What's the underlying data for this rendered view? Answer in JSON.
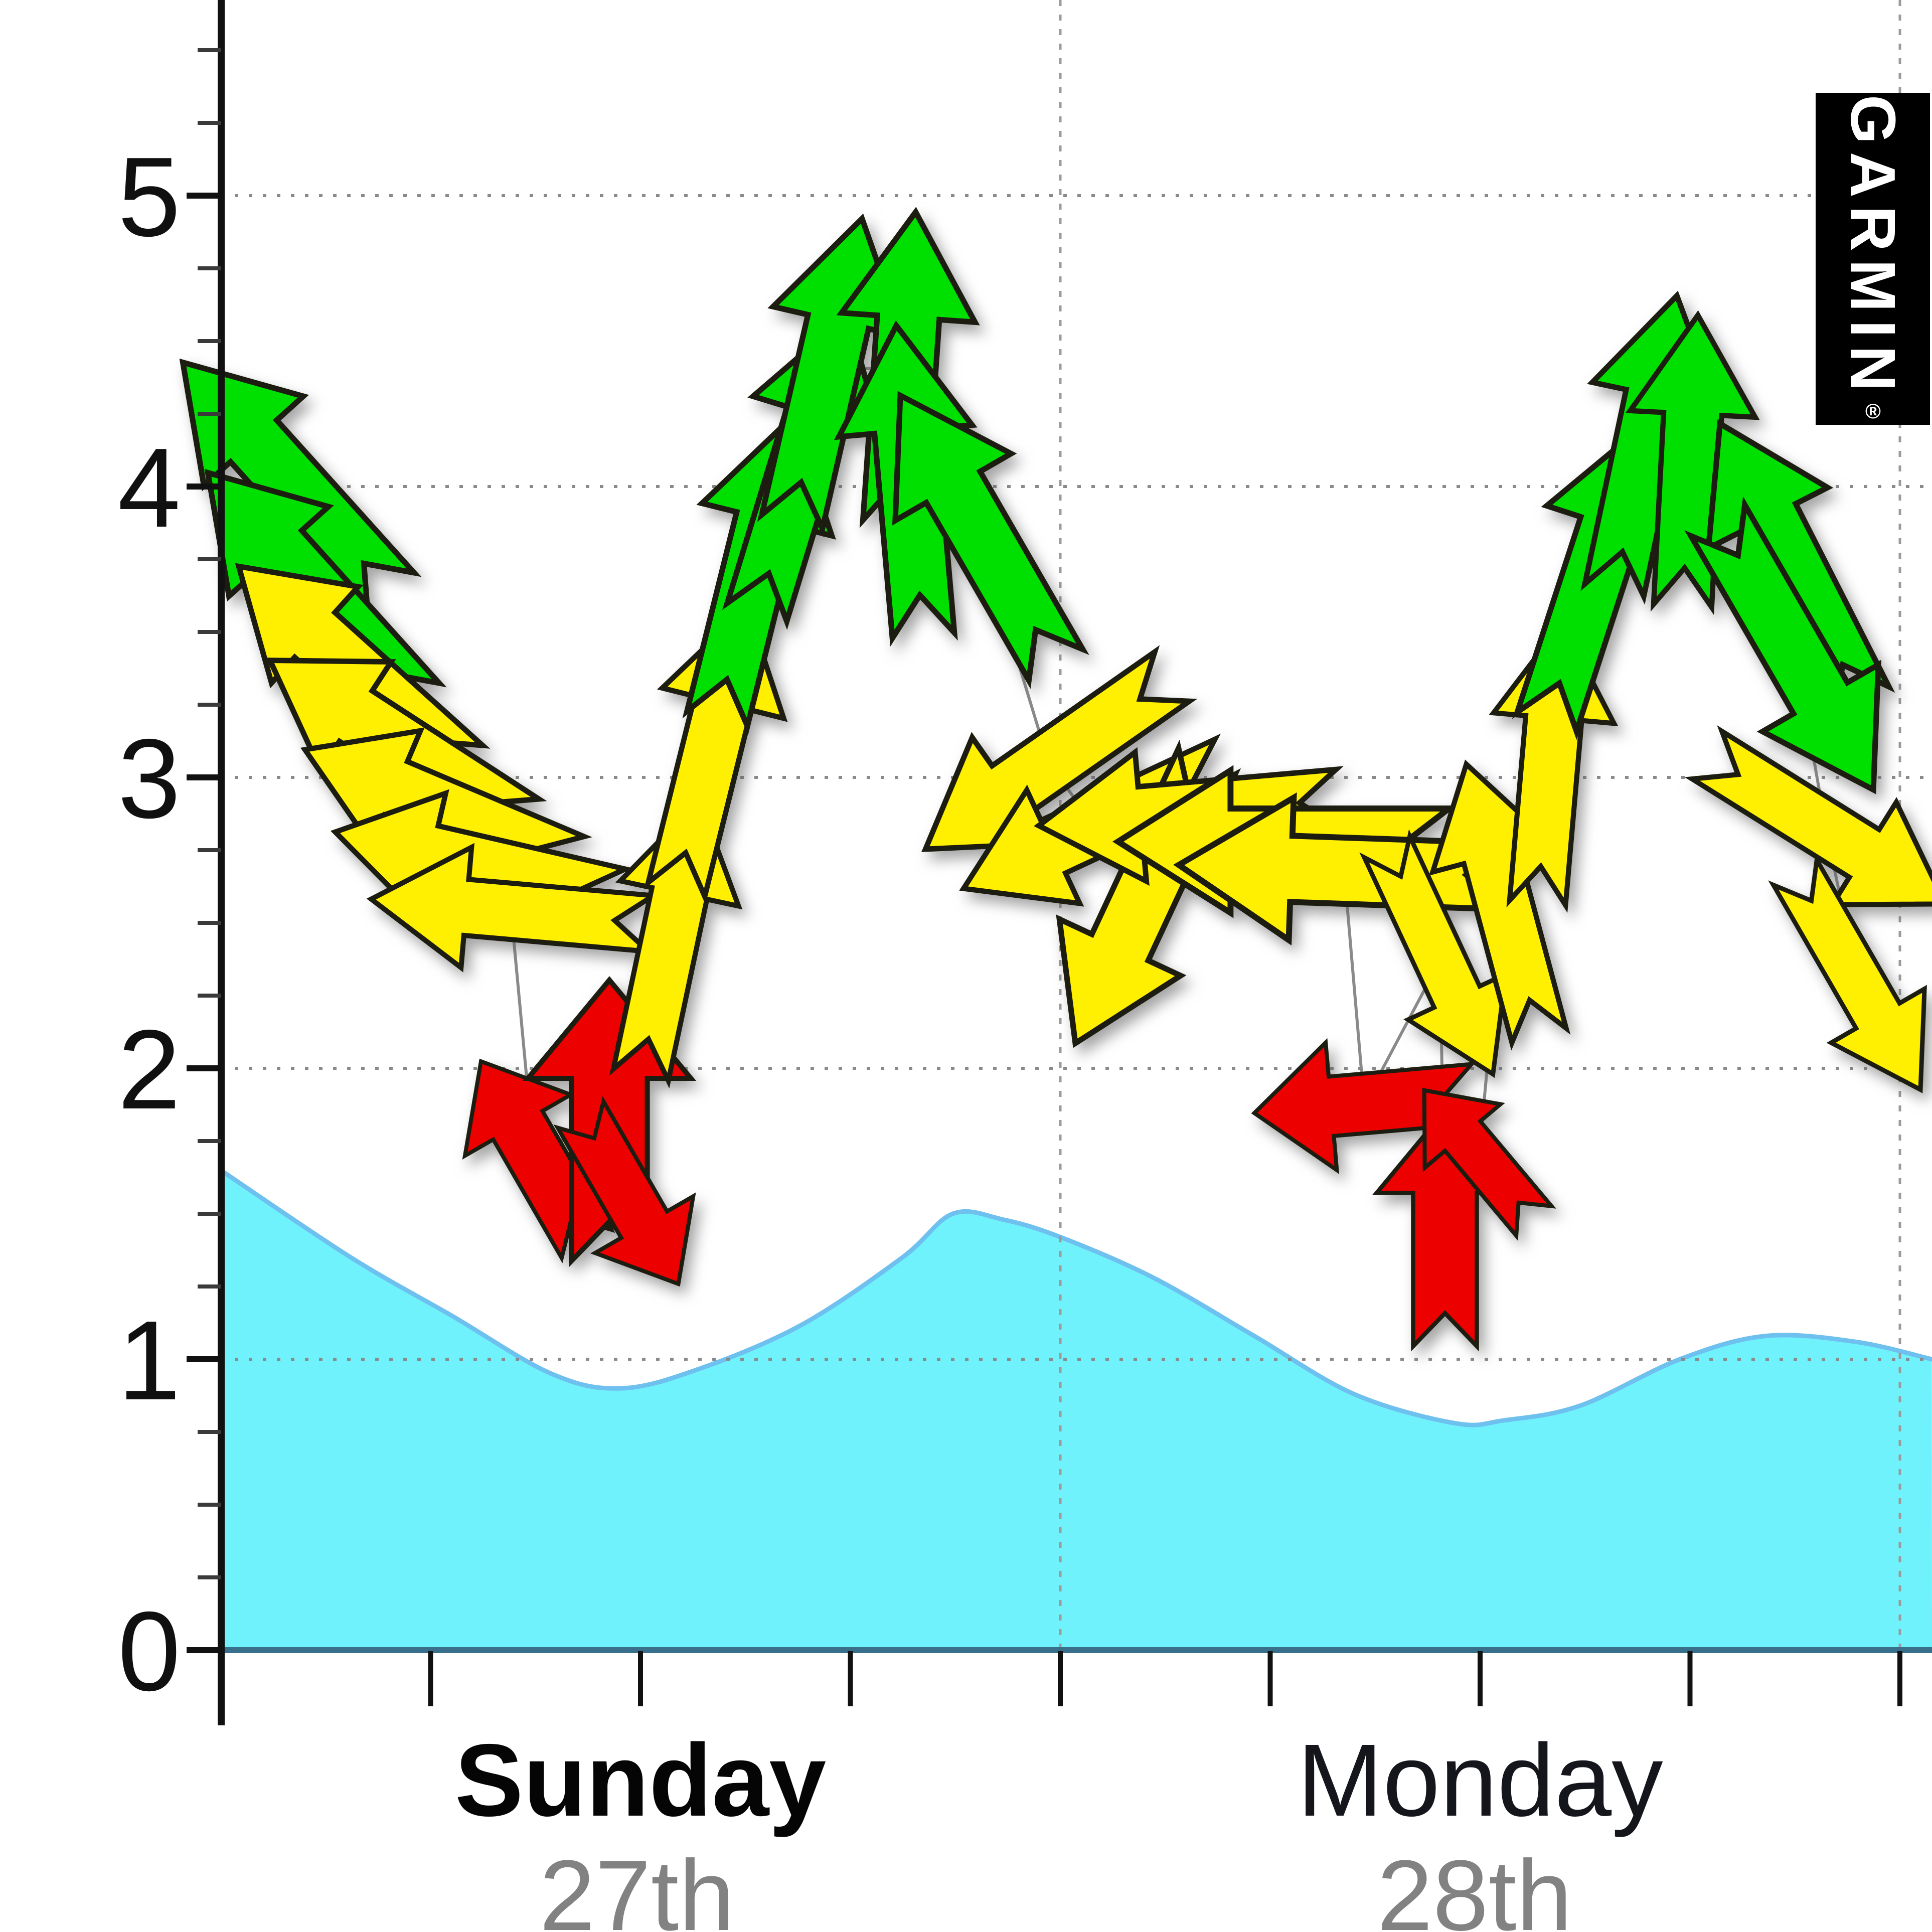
{
  "brand": {
    "logo_text": "GARMIN",
    "registered_mark": "®"
  },
  "chart_data": {
    "type": "line",
    "title": "",
    "xlabel": "",
    "ylabel": "",
    "x_axis": {
      "days": [
        {
          "label": "Sunday",
          "date": "27th",
          "emphasis": "bold"
        },
        {
          "label": "Monday",
          "date": "28th",
          "emphasis": "normal"
        }
      ],
      "ticks_per_day": 4,
      "day_span_shown": 2.04
    },
    "y_axis": {
      "min": 0,
      "max": 5.6,
      "tick_labels": [
        "0",
        "1",
        "2",
        "3",
        "4",
        "5"
      ],
      "minor_tick_step": 0.25,
      "grid": "dotted"
    },
    "series": [
      {
        "name": "wind-speed-and-direction",
        "type": "vector-arrows",
        "note": "t = days from Sunday 00:00, speed in y-axis units, dir = degrees clockwise from up, color = strength class",
        "points": [
          {
            "t": 0.079,
            "speed": 4.03,
            "dir": -42,
            "color": "green",
            "len": 620
          },
          {
            "t": 0.109,
            "speed": 3.65,
            "dir": -42,
            "color": "green",
            "len": 620
          },
          {
            "t": 0.155,
            "speed": 3.38,
            "dir": -48,
            "color": "yellow",
            "len": 600
          },
          {
            "t": 0.209,
            "speed": 3.12,
            "dir": -57,
            "color": "yellow",
            "len": 600
          },
          {
            "t": 0.26,
            "speed": 2.9,
            "dir": -67,
            "color": "yellow",
            "len": 580
          },
          {
            "t": 0.305,
            "speed": 2.7,
            "dir": -77,
            "color": "yellow",
            "len": 580
          },
          {
            "t": 0.346,
            "speed": 2.54,
            "dir": -85,
            "color": "yellow",
            "len": 560
          },
          {
            "t": 0.373,
            "speed": 1.71,
            "dir": -30,
            "color": "red",
            "len": 420
          },
          {
            "t": 0.463,
            "speed": 1.82,
            "dir": 0,
            "color": "red",
            "len": 560
          },
          {
            "t": 0.487,
            "speed": 1.55,
            "dir": 150,
            "color": "red",
            "len": 390
          },
          {
            "t": 0.535,
            "speed": 2.45,
            "dir": 12,
            "color": "yellow",
            "len": 560
          },
          {
            "t": 0.585,
            "speed": 3.1,
            "dir": 14,
            "color": "yellow",
            "len": 580
          },
          {
            "t": 0.636,
            "speed": 3.72,
            "dir": 14,
            "color": "green",
            "len": 620
          },
          {
            "t": 0.693,
            "speed": 4.08,
            "dir": 17,
            "color": "green",
            "len": 620
          },
          {
            "t": 0.722,
            "speed": 4.4,
            "dir": 13,
            "color": "green",
            "len": 620
          },
          {
            "t": 0.815,
            "speed": 4.41,
            "dir": 4,
            "color": "green",
            "len": 620
          },
          {
            "t": 0.821,
            "speed": 4.02,
            "dir": -5,
            "color": "green",
            "len": 620
          },
          {
            "t": 0.902,
            "speed": 3.85,
            "dir": -30,
            "color": "green",
            "len": 620
          },
          {
            "t": 0.986,
            "speed": 3.05,
            "dir": -125,
            "color": "yellow",
            "len": 600
          },
          {
            "t": 1.042,
            "speed": 2.83,
            "dir": -115,
            "color": "yellow",
            "len": 580
          },
          {
            "t": 1.096,
            "speed": 2.57,
            "dir": -155,
            "color": "yellow",
            "len": 620
          },
          {
            "t": 1.153,
            "speed": 2.88,
            "dir": -95,
            "color": "yellow",
            "len": 600
          },
          {
            "t": 1.266,
            "speed": 2.78,
            "dir": -90,
            "color": "yellow",
            "len": 660
          },
          {
            "t": 1.338,
            "speed": 2.68,
            "dir": -88,
            "color": "yellow",
            "len": 660
          },
          {
            "t": 1.362,
            "speed": 1.88,
            "dir": -95,
            "color": "red",
            "len": 440
          },
          {
            "t": 1.452,
            "speed": 2.37,
            "dir": 155,
            "color": "yellow",
            "len": 500
          },
          {
            "t": 1.458,
            "speed": 1.45,
            "dir": 0,
            "color": "red",
            "len": 470
          },
          {
            "t": 1.499,
            "speed": 1.7,
            "dir": -40,
            "color": "red",
            "len": 340
          },
          {
            "t": 1.527,
            "speed": 2.58,
            "dir": -15,
            "color": "yellow",
            "len": 560
          },
          {
            "t": 1.583,
            "speed": 3.05,
            "dir": 5,
            "color": "yellow",
            "len": 560
          },
          {
            "t": 1.637,
            "speed": 3.7,
            "dir": 18,
            "color": "green",
            "len": 620
          },
          {
            "t": 1.697,
            "speed": 4.15,
            "dir": 12,
            "color": "green",
            "len": 600
          },
          {
            "t": 1.75,
            "speed": 4.09,
            "dir": 3,
            "color": "green",
            "len": 580
          },
          {
            "t": 1.87,
            "speed": 3.74,
            "dir": -27,
            "color": "green",
            "len": 620
          },
          {
            "t": 1.876,
            "speed": 3.42,
            "dir": 150,
            "color": "green",
            "len": 620
          },
          {
            "t": 1.912,
            "speed": 2.82,
            "dir": 122,
            "color": "yellow",
            "len": 560
          },
          {
            "t": 1.95,
            "speed": 2.3,
            "dir": 150,
            "color": "yellow",
            "len": 500
          }
        ]
      },
      {
        "name": "tide-height",
        "type": "area",
        "points": [
          {
            "t": 0.0,
            "h": 1.65
          },
          {
            "t": 0.155,
            "h": 1.35
          },
          {
            "t": 0.275,
            "h": 1.15
          },
          {
            "t": 0.394,
            "h": 0.95
          },
          {
            "t": 0.478,
            "h": 0.9
          },
          {
            "t": 0.573,
            "h": 0.97
          },
          {
            "t": 0.693,
            "h": 1.12
          },
          {
            "t": 0.812,
            "h": 1.35
          },
          {
            "t": 0.872,
            "h": 1.5
          },
          {
            "t": 0.932,
            "h": 1.48
          },
          {
            "t": 1.0,
            "h": 1.42
          },
          {
            "t": 1.111,
            "h": 1.28
          },
          {
            "t": 1.231,
            "h": 1.08
          },
          {
            "t": 1.35,
            "h": 0.88
          },
          {
            "t": 1.47,
            "h": 0.78
          },
          {
            "t": 1.529,
            "h": 0.79
          },
          {
            "t": 1.619,
            "h": 0.84
          },
          {
            "t": 1.738,
            "h": 1.0
          },
          {
            "t": 1.84,
            "h": 1.08
          },
          {
            "t": 1.947,
            "h": 1.06
          },
          {
            "t": 2.038,
            "h": 1.0
          }
        ]
      }
    ],
    "colors": {
      "arrow_green": "#00e000",
      "arrow_yellow": "#ffef00",
      "arrow_red": "#ec0000",
      "arrow_outline": "#1c1c10",
      "tide_fill": "#70f2fc",
      "tide_edge": "#6ec0ef",
      "baseline": "#38708c",
      "grid": "#8a8a8a",
      "connector_line": "#8a8a8a",
      "axis": "#111111"
    },
    "legend_position": "none"
  }
}
